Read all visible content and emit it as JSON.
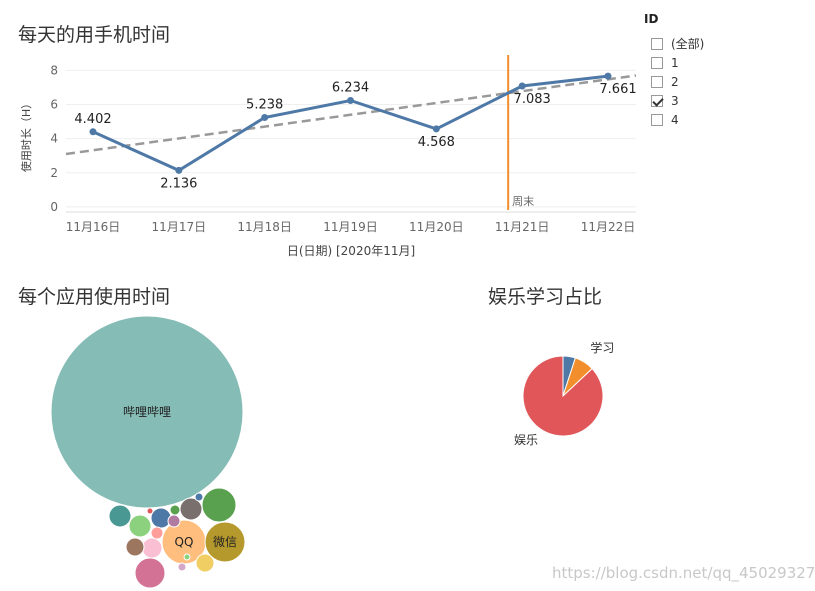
{
  "line_panel": {
    "title": "每天的用手机时间"
  },
  "bubble_panel": {
    "title": "每个应用使用时间"
  },
  "pie_panel": {
    "title": "娱乐学习占比"
  },
  "legend": {
    "title": "ID",
    "items": [
      {
        "label": "(全部)",
        "checked": false
      },
      {
        "label": "1",
        "checked": false
      },
      {
        "label": "2",
        "checked": false
      },
      {
        "label": "3",
        "checked": true
      },
      {
        "label": "4",
        "checked": false
      }
    ]
  },
  "watermark": "https://blog.csdn.net/qq_45029327",
  "colors": {
    "line": "#4e79a7",
    "trend": "#999999",
    "reference": "#f28e2b",
    "pie_entertainment": "#e15759",
    "pie_study": "#f28e2b",
    "pie_other": "#4e79a7"
  },
  "chart_data": [
    {
      "type": "line",
      "title": "每天的用手机时间",
      "xlabel": "日(日期) [2020年11月]",
      "ylabel": "使用时长（H）",
      "categories": [
        "11月16日",
        "11月17日",
        "11月18日",
        "11月19日",
        "11月20日",
        "11月21日",
        "11月22日"
      ],
      "values": [
        4.402,
        2.136,
        5.238,
        6.234,
        4.568,
        7.083,
        7.661
      ],
      "value_labels": [
        "4.402",
        "2.136",
        "5.238",
        "6.234",
        "4.568",
        "7.083",
        "7.661"
      ],
      "yticks": [
        0,
        2,
        4,
        6,
        8
      ],
      "ylim": [
        -0.3,
        8.9
      ],
      "trend_line": {
        "start": 3.1,
        "end": 7.7,
        "style": "dashed"
      },
      "reference_line": {
        "category": "11月21日",
        "label": "周末"
      },
      "grid": true
    },
    {
      "type": "bubble",
      "title": "每个应用使用时间",
      "bubbles": [
        {
          "label": "哔哩哔哩",
          "r": 96,
          "color": "#86bcb6"
        },
        {
          "label": "QQ",
          "r": 22,
          "color": "#ffbe7d"
        },
        {
          "label": "微信",
          "r": 20,
          "color": "#b6992d"
        },
        {
          "label": "",
          "r": 17,
          "color": "#59a14f"
        },
        {
          "label": "",
          "r": 15,
          "color": "#d37295"
        },
        {
          "label": "",
          "r": 11,
          "color": "#499894"
        },
        {
          "label": "",
          "r": 11,
          "color": "#8cd17d"
        },
        {
          "label": "",
          "r": 11,
          "color": "#79706e"
        },
        {
          "label": "",
          "r": 10,
          "color": "#4e79a7"
        },
        {
          "label": "",
          "r": 10,
          "color": "#fabfd2"
        },
        {
          "label": "",
          "r": 9,
          "color": "#f1ce63"
        },
        {
          "label": "",
          "r": 9,
          "color": "#9d7660"
        },
        {
          "label": "",
          "r": 6,
          "color": "#ff9d9a"
        },
        {
          "label": "",
          "r": 6,
          "color": "#b07aa1"
        },
        {
          "label": "",
          "r": 5,
          "color": "#59a14f"
        },
        {
          "label": "",
          "r": 4,
          "color": "#d4a6c8"
        },
        {
          "label": "",
          "r": 4,
          "color": "#4e79a7"
        },
        {
          "label": "",
          "r": 3,
          "color": "#e15759"
        },
        {
          "label": "",
          "r": 3,
          "color": "#8cd17d"
        }
      ]
    },
    {
      "type": "pie",
      "title": "娱乐学习占比",
      "slices": [
        {
          "label": "",
          "value": 5,
          "color": "#4e79a7"
        },
        {
          "label": "学习",
          "value": 8,
          "color": "#f28e2b"
        },
        {
          "label": "娱乐",
          "value": 87,
          "color": "#e15759"
        }
      ]
    }
  ]
}
